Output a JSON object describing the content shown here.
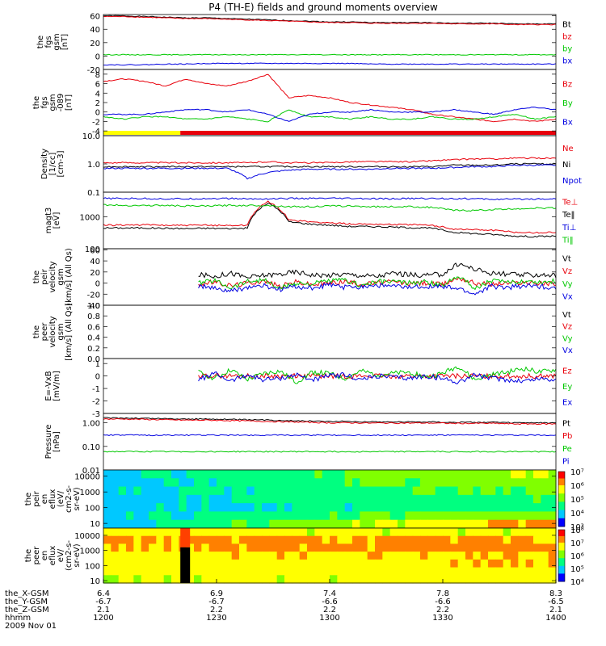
{
  "title": "P4 (TH-E) fields and ground moments overview",
  "colors": {
    "black": "#000000",
    "red": "#e8000b",
    "green": "#00c800",
    "blue": "#0000e0",
    "yellow": "#ffff00"
  },
  "chart_data": [
    {
      "type": "line",
      "ylabel": "the\nfgs\ngsm\n[nT]",
      "ylim": [
        -20,
        62
      ],
      "yticks": [
        "60",
        "40",
        "20",
        "0",
        "-20"
      ],
      "ytickvals": [
        60,
        40,
        20,
        0,
        -20
      ],
      "series": [
        {
          "name": "Bt",
          "color": "black",
          "values": [
            60,
            60,
            59,
            58,
            57,
            57,
            56,
            55,
            54,
            53,
            52,
            51,
            51,
            50,
            50,
            50,
            50,
            49,
            49,
            49,
            48,
            48,
            48
          ]
        },
        {
          "name": "bz",
          "color": "red",
          "values": [
            59,
            59,
            58,
            57,
            56,
            56,
            55,
            54,
            53,
            52,
            51,
            50,
            50,
            49,
            49,
            49,
            49,
            48,
            48,
            48,
            47,
            47,
            47
          ]
        },
        {
          "name": "by",
          "color": "green",
          "values": [
            2,
            2,
            2,
            2,
            2,
            2,
            2,
            2,
            2,
            2,
            2,
            2,
            2,
            2,
            2,
            2,
            2,
            2,
            2,
            2,
            2,
            2,
            2
          ]
        },
        {
          "name": "bx",
          "color": "blue",
          "values": [
            -13,
            -13,
            -13,
            -12,
            -12,
            -11,
            -11,
            -11,
            -11,
            -11,
            -11,
            -11,
            -11,
            -12,
            -12,
            -12,
            -12,
            -12,
            -12,
            -12,
            -12,
            -12,
            -12
          ]
        }
      ]
    },
    {
      "type": "line",
      "ylabel": "the\nfgs\ngsm\n-089\n[nT]",
      "ylim": [
        -5,
        9
      ],
      "yticks": [
        "8",
        "6",
        "4",
        "2",
        "0",
        "-2",
        "-4"
      ],
      "ytickvals": [
        8,
        6,
        4,
        2,
        0,
        -2,
        -4
      ],
      "series": [
        {
          "name": "Bz",
          "color": "red",
          "values": [
            6.5,
            7,
            6.5,
            5.5,
            7,
            6,
            5.5,
            6.5,
            8,
            3,
            3.5,
            3,
            2,
            1.5,
            1,
            0.5,
            -0.5,
            -1,
            -1.5,
            -2,
            -1.5,
            -2,
            -1.5
          ]
        },
        {
          "name": "By",
          "color": "green",
          "values": [
            -1,
            -1.5,
            -1,
            -1,
            -1.5,
            -1.5,
            -1,
            -1.5,
            -2,
            0.5,
            -1,
            -1,
            -1.5,
            -1,
            -1.5,
            -1.5,
            -1,
            -1.5,
            -1.5,
            -1,
            -0.5,
            -1.5,
            -1
          ]
        },
        {
          "name": "Bx",
          "color": "blue",
          "values": [
            -0.5,
            -0.5,
            -0.5,
            0,
            0.5,
            0.5,
            0,
            0.5,
            -0.5,
            -2,
            -0.5,
            0,
            0,
            0.5,
            0,
            0,
            0,
            0.5,
            0,
            -0.5,
            0.5,
            1,
            0.5
          ]
        }
      ],
      "status_bar": {
        "yellow_until_fraction": 0.17,
        "colors": [
          "yellow",
          "red"
        ]
      }
    },
    {
      "type": "line",
      "ylabel": "Density\n[1/cc]\n[cm-3]",
      "yscale": "log",
      "ylim": [
        0.1,
        10
      ],
      "yticks": [
        "10.0",
        "1.0",
        "0.1"
      ],
      "ytickvals": [
        10,
        1,
        0.1
      ],
      "series": [
        {
          "name": "Ne",
          "color": "red",
          "values": [
            1.1,
            1.1,
            1.1,
            1.1,
            1.1,
            1.1,
            1.1,
            1.1,
            1.2,
            1.1,
            1.1,
            1.1,
            1.2,
            1.2,
            1.2,
            1.2,
            1.3,
            1.4,
            1.5,
            1.5,
            1.6,
            1.6,
            1.6
          ]
        },
        {
          "name": "Ni",
          "color": "black",
          "values": [
            0.8,
            0.8,
            0.8,
            0.8,
            0.8,
            0.8,
            0.8,
            0.8,
            0.8,
            0.8,
            0.8,
            0.8,
            0.8,
            0.8,
            0.8,
            0.8,
            0.8,
            0.9,
            0.9,
            0.9,
            1.0,
            1.0,
            1.0
          ]
        },
        {
          "name": "Npot",
          "color": "blue",
          "values": [
            0.7,
            0.7,
            0.7,
            0.7,
            0.7,
            0.7,
            0.7,
            0.3,
            0.5,
            0.6,
            0.65,
            0.65,
            0.65,
            0.65,
            0.7,
            0.7,
            0.7,
            0.75,
            0.8,
            0.8,
            0.9,
            0.9,
            0.9
          ]
        }
      ]
    },
    {
      "type": "line",
      "ylabel": "magt3\n[eV]",
      "yscale": "log",
      "ylim": [
        100,
        6000
      ],
      "yticks": [
        "1000",
        "100"
      ],
      "ytickvals": [
        1000,
        100
      ],
      "series": [
        {
          "name": "Te⊥",
          "color": "red",
          "values": [
            550,
            560,
            560,
            550,
            540,
            550,
            540,
            550,
            3000,
            800,
            700,
            650,
            600,
            600,
            580,
            570,
            540,
            420,
            400,
            380,
            330,
            320,
            330
          ]
        },
        {
          "name": "Te‖",
          "color": "black",
          "values": [
            450,
            450,
            450,
            440,
            430,
            440,
            430,
            440,
            2700,
            700,
            600,
            550,
            500,
            500,
            480,
            460,
            440,
            330,
            300,
            280,
            250,
            240,
            250
          ]
        },
        {
          "name": "Ti⊥",
          "color": "blue",
          "values": [
            3800,
            3800,
            3800,
            3700,
            3700,
            3800,
            3800,
            3700,
            3700,
            3800,
            3800,
            3800,
            3800,
            3700,
            3700,
            3800,
            3800,
            3800,
            3700,
            3600,
            3600,
            3700,
            3700
          ]
        },
        {
          "name": "Ti‖",
          "color": "green",
          "values": [
            2400,
            2300,
            2300,
            2300,
            2200,
            2200,
            2300,
            2300,
            2300,
            2100,
            2100,
            2200,
            2200,
            2100,
            2100,
            2100,
            2000,
            1600,
            1600,
            1700,
            1800,
            1900,
            1900
          ]
        }
      ]
    },
    {
      "type": "line",
      "ylabel": "the\npeir\nvelocity\ngsm\n[km/s] (All Qs)",
      "ylim": [
        -40,
        62
      ],
      "yticks": [
        "60",
        "40",
        "20",
        "0",
        "-20",
        "-40"
      ],
      "ytickvals": [
        60,
        40,
        20,
        0,
        -20,
        -40
      ],
      "data_start_fraction": 0.21,
      "series": [
        {
          "name": "Vt",
          "color": "black",
          "values": [
            15,
            12,
            18,
            10,
            14,
            16,
            20,
            15,
            14,
            16,
            14,
            12,
            18,
            15,
            14,
            16,
            35,
            25,
            18,
            16,
            14,
            15,
            14
          ]
        },
        {
          "name": "Vz",
          "color": "red",
          "values": [
            -2,
            2,
            -5,
            0,
            4,
            -6,
            2,
            -3,
            0,
            3,
            -2,
            0,
            2,
            -1,
            0,
            -3,
            10,
            0,
            -2,
            0,
            1,
            -1,
            0
          ]
        },
        {
          "name": "Vy",
          "color": "green",
          "values": [
            0,
            5,
            -8,
            3,
            6,
            -10,
            0,
            -2,
            4,
            5,
            -4,
            2,
            3,
            0,
            2,
            -5,
            15,
            -10,
            5,
            0,
            4,
            2,
            3
          ]
        },
        {
          "name": "Vx",
          "color": "blue",
          "values": [
            -5,
            -10,
            -15,
            -8,
            -5,
            -12,
            -6,
            -10,
            -3,
            -8,
            -6,
            -4,
            -6,
            -8,
            -5,
            -7,
            -10,
            -20,
            -6,
            -8,
            -5,
            -6,
            -8
          ]
        }
      ]
    },
    {
      "type": "line",
      "ylabel": "the\npeer\nvelocity\ngsm\n[km/s] (All Qs)",
      "ylim": [
        0,
        1
      ],
      "yticks": [
        "1.0",
        "0.8",
        "0.6",
        "0.4",
        "0.2",
        "0.0"
      ],
      "ytickvals": [
        1,
        0.8,
        0.6,
        0.4,
        0.2,
        0
      ],
      "series": [
        {
          "name": "Vt",
          "color": "black",
          "values": []
        },
        {
          "name": "Vz",
          "color": "red",
          "values": []
        },
        {
          "name": "Vy",
          "color": "green",
          "values": []
        },
        {
          "name": "Vx",
          "color": "blue",
          "values": []
        }
      ]
    },
    {
      "type": "line",
      "ylabel": "E=-VxB\n[mV/m]",
      "ylim": [
        -3,
        1.4
      ],
      "yticks": [
        "1",
        "0",
        "-1",
        "-2",
        "-3"
      ],
      "ytickvals": [
        1,
        0,
        -1,
        -2,
        -3
      ],
      "data_start_fraction": 0.21,
      "series": [
        {
          "name": "Ez",
          "color": "red",
          "values": [
            0,
            0,
            0,
            0,
            0,
            0,
            0,
            0,
            0,
            0,
            0,
            0,
            0,
            0,
            0,
            0,
            0,
            0,
            0,
            0,
            0,
            0,
            0
          ]
        },
        {
          "name": "Ey",
          "color": "green",
          "values": [
            0.3,
            -0.2,
            0.5,
            -0.3,
            0.2,
            0.4,
            -0.5,
            0.3,
            0.2,
            -0.2,
            0.4,
            0.1,
            0.2,
            0.3,
            -0.1,
            0.2,
            0.8,
            -0.3,
            0.1,
            0.3,
            0.6,
            0.3,
            0.5
          ]
        },
        {
          "name": "Ex",
          "color": "blue",
          "values": [
            -0.3,
            0.2,
            -0.4,
            0.1,
            -0.3,
            -0.2,
            0.1,
            -0.3,
            0.0,
            0.1,
            -0.3,
            0.0,
            -0.1,
            -0.2,
            0.0,
            -0.2,
            -0.5,
            0.1,
            -0.2,
            -0.3,
            -0.4,
            -0.2,
            -0.3
          ]
        }
      ]
    },
    {
      "type": "line",
      "ylabel": "Pressure\n[nPa]",
      "yscale": "log",
      "ylim": [
        0.01,
        2.5
      ],
      "yticks": [
        "1.00",
        "0.10",
        "0.01"
      ],
      "ytickvals": [
        1,
        0.1,
        0.01
      ],
      "series": [
        {
          "name": "Pt",
          "color": "black",
          "values": [
            1.6,
            1.6,
            1.55,
            1.5,
            1.45,
            1.45,
            1.4,
            1.35,
            1.3,
            1.25,
            1.2,
            1.15,
            1.15,
            1.1,
            1.1,
            1.1,
            1.1,
            1.05,
            1.05,
            1.05,
            1.0,
            1.0,
            1.0
          ]
        },
        {
          "name": "Pb",
          "color": "red",
          "values": [
            1.45,
            1.45,
            1.4,
            1.35,
            1.3,
            1.3,
            1.25,
            1.2,
            1.15,
            1.1,
            1.05,
            1.0,
            1.0,
            0.98,
            0.98,
            0.98,
            0.98,
            0.95,
            0.95,
            0.95,
            0.9,
            0.9,
            0.9
          ]
        },
        {
          "name": "Pe",
          "color": "green",
          "values": [
            0.06,
            0.06,
            0.06,
            0.06,
            0.06,
            0.06,
            0.06,
            0.06,
            0.06,
            0.06,
            0.06,
            0.06,
            0.06,
            0.06,
            0.06,
            0.06,
            0.06,
            0.06,
            0.06,
            0.06,
            0.06,
            0.06,
            0.06
          ]
        },
        {
          "name": "Pi",
          "color": "blue",
          "values": [
            0.3,
            0.3,
            0.3,
            0.3,
            0.3,
            0.3,
            0.3,
            0.3,
            0.3,
            0.3,
            0.3,
            0.3,
            0.3,
            0.3,
            0.3,
            0.3,
            0.3,
            0.3,
            0.3,
            0.3,
            0.3,
            0.3,
            0.3
          ]
        }
      ]
    },
    {
      "type": "heatmap",
      "ylabel": "the\npeir\nen\neflux\n(eV/\ncm2-s-\nsr-eV)",
      "yscale": "log",
      "ylim": [
        5,
        25000
      ],
      "yticks": [
        "10000",
        "1000",
        "100",
        "10"
      ],
      "ytickvals": [
        10000,
        1000,
        100,
        10
      ],
      "colorbar": {
        "ticks": [
          "10⁷",
          "10⁶",
          "10⁵",
          "10⁴",
          "10³"
        ],
        "range": [
          3,
          7
        ]
      },
      "rows_log_energy": [
        1,
        1.5,
        2,
        2.5,
        3,
        3.5,
        4
      ],
      "levels": [
        [
          4,
          6.3
        ],
        [
          4,
          5.3
        ],
        [
          4,
          4.6
        ],
        [
          4,
          4.8
        ],
        [
          4,
          5.0
        ],
        [
          4,
          5.3
        ],
        [
          4,
          5.5
        ]
      ]
    },
    {
      "type": "heatmap",
      "ylabel": "the\npeer\nen\neflux\neV/\n(cm2-s-\nsr-eV)",
      "yscale": "log",
      "ylim": [
        7,
        30000
      ],
      "yticks": [
        "10000",
        "1000",
        "100",
        "10"
      ],
      "ytickvals": [
        10000,
        1000,
        100,
        10
      ],
      "colorbar": {
        "ticks": [
          "10⁸",
          "10⁷",
          "10⁶",
          "10⁵",
          "10⁴"
        ],
        "range": [
          4,
          8
        ]
      },
      "rows_log_energy": [
        1,
        1.5,
        2,
        2.5,
        3,
        3.5,
        4
      ],
      "levels": [
        [
          6.5,
          6.6
        ],
        [
          6.6,
          6.8
        ],
        [
          6.7,
          6.9
        ],
        [
          6.8,
          7.0
        ],
        [
          7.0,
          7.2
        ],
        [
          7.1,
          7.1
        ],
        [
          6.6,
          6.5
        ]
      ]
    }
  ],
  "xaxis": {
    "labels": [
      "the_X-GSM",
      "the_Y-GSM",
      "the_Z-GSM",
      "hhmm",
      "2009 Nov 01"
    ],
    "ticks": [
      {
        "x": "6.4",
        "y": "-6.7",
        "z": "2.1",
        "t": "1200"
      },
      {
        "x": "6.9",
        "y": "-6.7",
        "z": "2.2",
        "t": "1230"
      },
      {
        "x": "7.4",
        "y": "-6.6",
        "z": "2.2",
        "t": "1300"
      },
      {
        "x": "7.8",
        "y": "-6.6",
        "z": "2.2",
        "t": "1330"
      },
      {
        "x": "8.3",
        "y": "-6.5",
        "z": "2.1",
        "t": "1400"
      }
    ]
  }
}
